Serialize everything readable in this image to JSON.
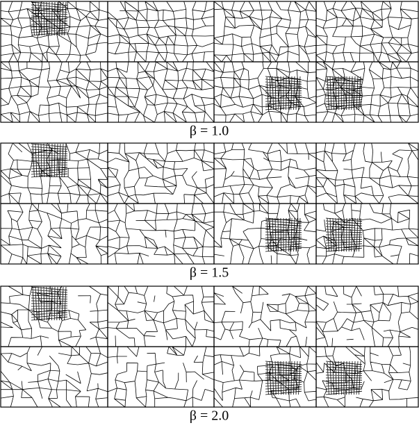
{
  "figure": {
    "panels": [
      {
        "caption": "β = 1.0"
      },
      {
        "caption": "β = 1.5"
      },
      {
        "caption": "β = 2.0"
      }
    ]
  }
}
